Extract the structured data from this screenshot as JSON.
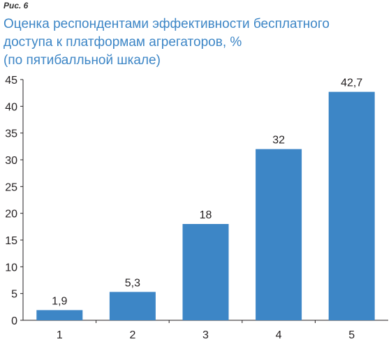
{
  "figure_label": "Рис. 6",
  "title_lines": [
    "Оценка респондентами эффективности бесплатного",
    "доступа к платформам агрегаторов, %",
    "(по пятибалльной шкале)"
  ],
  "chart_data": {
    "type": "bar",
    "title": "Оценка респондентами эффективности бесплатного доступа к платформам агрегаторов, % (по пятибалльной шкале)",
    "categories": [
      "1",
      "2",
      "3",
      "4",
      "5"
    ],
    "values": [
      1.9,
      5.3,
      18,
      32,
      42.7
    ],
    "value_labels": [
      "1,9",
      "5,3",
      "18",
      "32",
      "42,7"
    ],
    "y_ticks": [
      "0",
      "5",
      "10",
      "15",
      "20",
      "25",
      "30",
      "35",
      "40",
      "45"
    ],
    "ylim": [
      0,
      45
    ],
    "grid": false,
    "bar_color": "#3d86c6",
    "xlabel": "",
    "ylabel": ""
  }
}
